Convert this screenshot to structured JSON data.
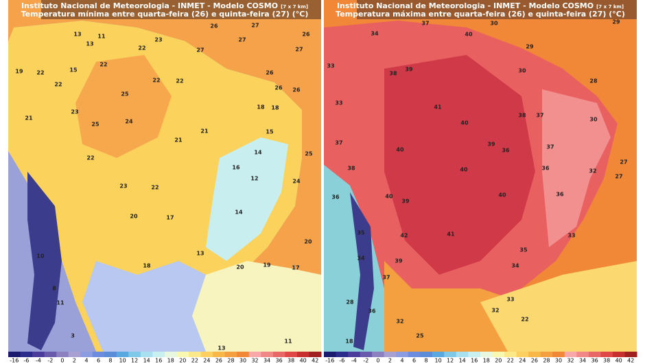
{
  "panels": [
    {
      "title": "Instituto Nacional de Meteorologia - INMET - Modelo COSMO",
      "resolution": "[7 x 7 km]",
      "subtitle": "Temperatura mínima entre quarta-feira (26) e quinta-feira (27) (°C)",
      "labels": [
        13,
        11,
        13,
        22,
        23,
        27,
        26,
        27,
        27,
        26,
        27,
        19,
        22,
        15,
        22,
        22,
        25,
        22,
        22,
        26,
        26,
        26,
        21,
        23,
        25,
        24,
        21,
        18,
        18,
        15,
        22,
        21,
        14,
        16,
        25,
        23,
        22,
        12,
        24,
        20,
        17,
        14,
        10,
        18,
        13,
        20,
        19,
        17,
        20,
        8,
        11,
        3,
        11,
        13
      ]
    },
    {
      "title": "Instituto Nacional de Meteorologia - INMET - Modelo COSMO",
      "resolution": "[7 x 7 km]",
      "subtitle": "Temperatura máxima entre quarta-feira (26) e quinta-feira (27) (°C)",
      "labels": [
        34,
        37,
        30,
        29,
        40,
        29,
        33,
        38,
        39,
        30,
        28,
        33,
        41,
        40,
        38,
        37,
        30,
        37,
        40,
        39,
        36,
        37,
        38,
        40,
        36,
        32,
        27,
        27,
        36,
        40,
        39,
        40,
        36,
        41,
        42,
        33,
        35,
        34,
        39,
        35,
        34,
        37,
        33,
        32,
        28,
        36,
        32,
        25,
        22,
        18
      ]
    }
  ],
  "colorbar": {
    "ticks": [
      -16,
      -6,
      -4,
      -2,
      0,
      2,
      4,
      6,
      8,
      10,
      12,
      14,
      16,
      18,
      20,
      22,
      24,
      26,
      28,
      30,
      32,
      34,
      36,
      38,
      40,
      42
    ],
    "colors": [
      "#1a1a6e",
      "#2c2c8c",
      "#4b3c9c",
      "#6a5aac",
      "#8c80c0",
      "#a8a0d0",
      "#8c9ce0",
      "#6c8ce0",
      "#5a8cd8",
      "#5aa8e0",
      "#80c8e8",
      "#a8e0f0",
      "#c8f0f0",
      "#e8f8e0",
      "#f8f8b0",
      "#fbe888",
      "#fbd060",
      "#f8b848",
      "#f5a040",
      "#f08838",
      "#f8a8a8",
      "#f08888",
      "#e86868",
      "#e04848",
      "#c83030",
      "#a02020"
    ]
  }
}
